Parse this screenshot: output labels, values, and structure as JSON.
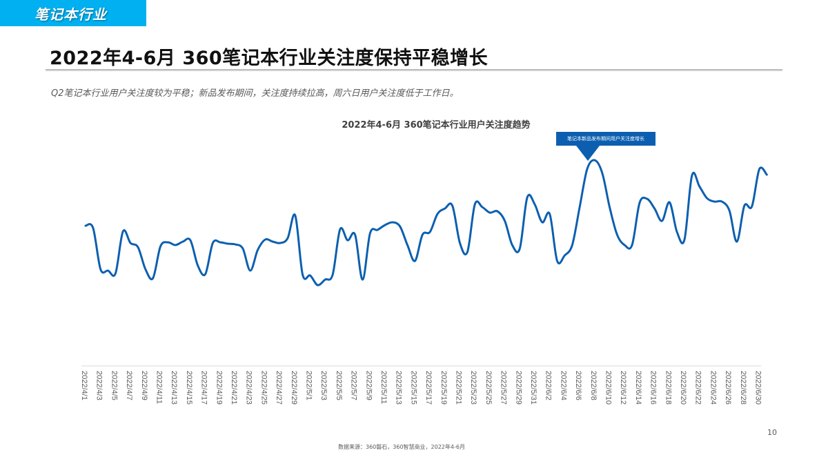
{
  "header": {
    "section_tag": "笔记本行业",
    "title": "2022年4-6月 360笔记本行业关注度保持平稳增长",
    "subtitle": "Q2笔记本行业用户关注度较为平稳；新品发布期间，关注度持续拉高，周六日用户关注度低于工作日。"
  },
  "footer": {
    "page_number": "10",
    "source": "数据来源：360磐石，360智慧商业，2022年4-6月"
  },
  "colors": {
    "tag_bg": "#00b0f0",
    "line": "#0c5fb0",
    "callout_bg": "#0c5fb0"
  },
  "chart_data": {
    "type": "line",
    "title": "2022年4-6月 360笔记本行业用户关注度趋势",
    "xlabel": "",
    "ylabel": "",
    "y_axis_visible": false,
    "grid": false,
    "legend": null,
    "value_note": "relative attention index (no y-axis shown); estimated from line height",
    "annotation": {
      "text": "笔记本新品发布期间用户关注度增长",
      "at": "2022/6/8"
    },
    "x_tick_labels": [
      "2022/4/1",
      "2022/4/3",
      "2022/4/5",
      "2022/4/7",
      "2022/4/9",
      "2022/4/11",
      "2022/4/13",
      "2022/4/15",
      "2022/4/17",
      "2022/4/19",
      "2022/4/21",
      "2022/4/23",
      "2022/4/25",
      "2022/4/27",
      "2022/4/29",
      "2022/5/1",
      "2022/5/3",
      "2022/5/5",
      "2022/5/7",
      "2022/5/9",
      "2022/5/11",
      "2022/5/13",
      "2022/5/15",
      "2022/5/17",
      "2022/5/19",
      "2022/5/21",
      "2022/5/23",
      "2022/5/25",
      "2022/5/27",
      "2022/5/29",
      "2022/5/31",
      "2022/6/2",
      "2022/6/4",
      "2022/6/6",
      "2022/6/8",
      "2022/6/10",
      "2022/6/12",
      "2022/6/14",
      "2022/6/16",
      "2022/6/18",
      "2022/6/20",
      "2022/6/22",
      "2022/6/24",
      "2022/6/26",
      "2022/6/28",
      "2022/6/30"
    ],
    "start_date": "2022/4/1",
    "end_date": "2022/6/30",
    "series": [
      {
        "name": "用户关注度",
        "values": [
          173,
          170,
          110,
          108,
          104,
          165,
          148,
          142,
          110,
          97,
          143,
          149,
          145,
          150,
          152,
          115,
          103,
          148,
          149,
          147,
          146,
          140,
          108,
          138,
          153,
          150,
          148,
          155,
          188,
          102,
          101,
          87,
          95,
          102,
          168,
          152,
          160,
          95,
          162,
          167,
          174,
          178,
          172,
          145,
          122,
          160,
          164,
          190,
          198,
          202,
          148,
          135,
          204,
          200,
          192,
          194,
          180,
          145,
          140,
          214,
          204,
          178,
          190,
          122,
          130,
          145,
          200,
          255,
          268,
          250,
          200,
          160,
          145,
          145,
          206,
          212,
          198,
          180,
          207,
          164,
          153,
          246,
          230,
          213,
          208,
          208,
          195,
          150,
          202,
          201,
          255,
          247
        ]
      }
    ]
  }
}
